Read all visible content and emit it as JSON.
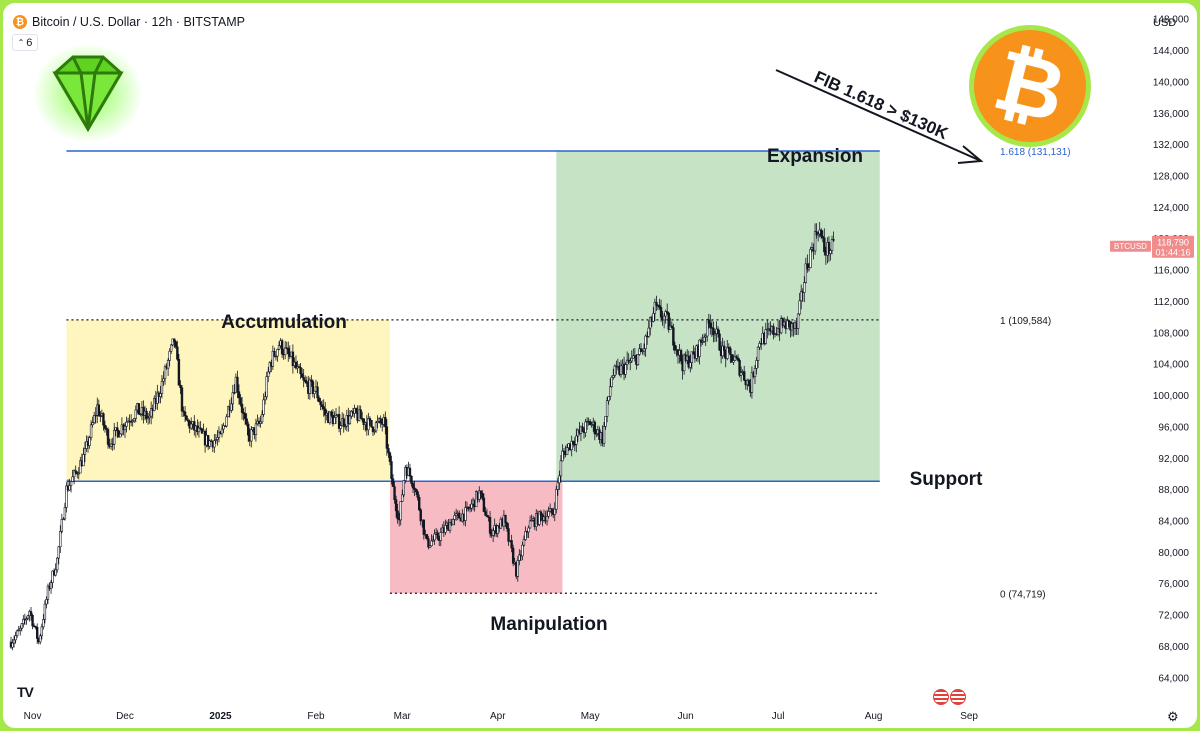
{
  "header": {
    "symbol_icon": "bitcoin-icon",
    "title": "Bitcoin / U.S. Dollar · 12h · BITSTAMP",
    "interval_value": "6",
    "currency": "USD"
  },
  "colors": {
    "accumulation": "#fff6bf",
    "manipulation": "#f7bcc3",
    "expansion": "#c6e3c6",
    "level_line": "#2b63d6",
    "candle": "#131722",
    "price_tag": "#f08c8c",
    "bitcoin_orange": "#f7931a",
    "frame": "#a6e84a"
  },
  "annotations": {
    "accumulation": "Accumulation",
    "manipulation": "Manipulation",
    "expansion": "Expansion",
    "support": "Support",
    "fib_arrow": "FIB 1.618 > $130K"
  },
  "levels": {
    "fib_1618": "1.618 (131,131)",
    "fib_1": "1 (109,584)",
    "fib_0": "0 (74,719)"
  },
  "price_tag": {
    "symbol": "BTCUSD",
    "price": "118,790",
    "countdown": "01:44:16"
  },
  "icons": {
    "logo": "diamond-logo-icon",
    "bitcoin": "bitcoin-logo-icon",
    "tradingview": "tradingview-logo-icon",
    "flags": "us-flag-icon",
    "settings": "gear-icon"
  },
  "chart_data": {
    "type": "candlestick",
    "symbol": "BTCUSD",
    "interval": "12h",
    "y_axis": {
      "range": [
        62000,
        150000
      ],
      "ticks": [
        64000,
        68000,
        72000,
        76000,
        80000,
        84000,
        88000,
        92000,
        96000,
        100000,
        104000,
        108000,
        112000,
        116000,
        120000,
        124000,
        128000,
        132000,
        136000,
        140000,
        144000,
        148000
      ],
      "tick_labels": [
        "64,000",
        "68,000",
        "72,000",
        "76,000",
        "80,000",
        "84,000",
        "88,000",
        "92,000",
        "96,000",
        "100,000",
        "104,000",
        "108,000",
        "112,000",
        "116,000",
        "120,000",
        "124,000",
        "128,000",
        "132,000",
        "136,000",
        "140,000",
        "144,000",
        "148,000"
      ]
    },
    "x_axis": {
      "range": [
        "2024-10-25",
        "2025-09-12"
      ],
      "ticks": [
        "2024-11-01",
        "2024-12-01",
        "2025-01-01",
        "2025-02-01",
        "2025-03-01",
        "2025-04-01",
        "2025-05-01",
        "2025-06-01",
        "2025-07-01",
        "2025-08-01",
        "2025-09-01"
      ],
      "tick_labels": [
        "Nov",
        "Dec",
        "2025",
        "Feb",
        "Mar",
        "Apr",
        "May",
        "Jun",
        "Jul",
        "Aug",
        "Sep"
      ]
    },
    "zones": [
      {
        "label": "Accumulation",
        "from": "2024-11-12",
        "to": "2025-02-25",
        "low": 89000,
        "high": 109584
      },
      {
        "label": "Manipulation",
        "from": "2025-02-25",
        "to": "2025-04-22",
        "low": 74719,
        "high": 89000
      },
      {
        "label": "Expansion",
        "from": "2025-04-20",
        "to": "2025-08-03",
        "low": 89000,
        "high": 131131
      }
    ],
    "lines": [
      {
        "label": "1.618 (131,131)",
        "price": 131131,
        "style": "solid",
        "from": "2024-11-12",
        "to": "2025-08-03"
      },
      {
        "label": "1 (109,584)",
        "price": 109584,
        "style": "dotted",
        "from": "2024-11-12",
        "to": "2025-08-03"
      },
      {
        "label": "0 (74,719)",
        "price": 74719,
        "style": "dotted",
        "from": "2025-02-25",
        "to": "2025-08-03"
      },
      {
        "label": "Support",
        "price": 89000,
        "style": "solid",
        "from": "2024-11-12",
        "to": "2025-08-03"
      }
    ],
    "last_price": 118790,
    "series": [
      {
        "date": "2024-10-25",
        "close": 68500
      },
      {
        "date": "2024-10-28",
        "close": 70000
      },
      {
        "date": "2024-10-31",
        "close": 72500
      },
      {
        "date": "2024-11-03",
        "close": 68500
      },
      {
        "date": "2024-11-06",
        "close": 75000
      },
      {
        "date": "2024-11-09",
        "close": 79000
      },
      {
        "date": "2024-11-12",
        "close": 88000
      },
      {
        "date": "2024-11-15",
        "close": 90000
      },
      {
        "date": "2024-11-18",
        "close": 92500
      },
      {
        "date": "2024-11-22",
        "close": 98500
      },
      {
        "date": "2024-11-26",
        "close": 94000
      },
      {
        "date": "2024-12-01",
        "close": 96500
      },
      {
        "date": "2024-12-05",
        "close": 98000
      },
      {
        "date": "2024-12-09",
        "close": 97000
      },
      {
        "date": "2024-12-13",
        "close": 101500
      },
      {
        "date": "2024-12-17",
        "close": 107000
      },
      {
        "date": "2024-12-20",
        "close": 97000
      },
      {
        "date": "2024-12-24",
        "close": 95500
      },
      {
        "date": "2024-12-28",
        "close": 94000
      },
      {
        "date": "2025-01-01",
        "close": 94500
      },
      {
        "date": "2025-01-06",
        "close": 102000
      },
      {
        "date": "2025-01-10",
        "close": 94500
      },
      {
        "date": "2025-01-14",
        "close": 96500
      },
      {
        "date": "2025-01-17",
        "close": 104000
      },
      {
        "date": "2025-01-20",
        "close": 106500
      },
      {
        "date": "2025-01-24",
        "close": 104500
      },
      {
        "date": "2025-01-28",
        "close": 101500
      },
      {
        "date": "2025-02-01",
        "close": 100500
      },
      {
        "date": "2025-02-04",
        "close": 97500
      },
      {
        "date": "2025-02-09",
        "close": 96500
      },
      {
        "date": "2025-02-14",
        "close": 97500
      },
      {
        "date": "2025-02-19",
        "close": 96000
      },
      {
        "date": "2025-02-23",
        "close": 96500
      },
      {
        "date": "2025-02-26",
        "close": 88000
      },
      {
        "date": "2025-02-28",
        "close": 84000
      },
      {
        "date": "2025-03-02",
        "close": 91000
      },
      {
        "date": "2025-03-05",
        "close": 88500
      },
      {
        "date": "2025-03-09",
        "close": 81000
      },
      {
        "date": "2025-03-13",
        "close": 82000
      },
      {
        "date": "2025-03-17",
        "close": 84000
      },
      {
        "date": "2025-03-22",
        "close": 85000
      },
      {
        "date": "2025-03-26",
        "close": 87500
      },
      {
        "date": "2025-03-30",
        "close": 82500
      },
      {
        "date": "2025-04-03",
        "close": 84000
      },
      {
        "date": "2025-04-07",
        "close": 77500
      },
      {
        "date": "2025-04-11",
        "close": 83500
      },
      {
        "date": "2025-04-15",
        "close": 84500
      },
      {
        "date": "2025-04-19",
        "close": 85000
      },
      {
        "date": "2025-04-22",
        "close": 92500
      },
      {
        "date": "2025-04-26",
        "close": 94500
      },
      {
        "date": "2025-05-01",
        "close": 96500
      },
      {
        "date": "2025-05-05",
        "close": 94500
      },
      {
        "date": "2025-05-08",
        "close": 102500
      },
      {
        "date": "2025-05-12",
        "close": 103500
      },
      {
        "date": "2025-05-18",
        "close": 105500
      },
      {
        "date": "2025-05-22",
        "close": 111000
      },
      {
        "date": "2025-05-26",
        "close": 109500
      },
      {
        "date": "2025-05-31",
        "close": 104000
      },
      {
        "date": "2025-06-04",
        "close": 105000
      },
      {
        "date": "2025-06-09",
        "close": 109500
      },
      {
        "date": "2025-06-13",
        "close": 105500
      },
      {
        "date": "2025-06-17",
        "close": 104500
      },
      {
        "date": "2025-06-22",
        "close": 101000
      },
      {
        "date": "2025-06-25",
        "close": 107000
      },
      {
        "date": "2025-06-29",
        "close": 108000
      },
      {
        "date": "2025-07-03",
        "close": 109000
      },
      {
        "date": "2025-07-07",
        "close": 108500
      },
      {
        "date": "2025-07-10",
        "close": 116000
      },
      {
        "date": "2025-07-14",
        "close": 121500
      },
      {
        "date": "2025-07-16",
        "close": 118500
      },
      {
        "date": "2025-07-19",
        "close": 118790
      }
    ]
  }
}
